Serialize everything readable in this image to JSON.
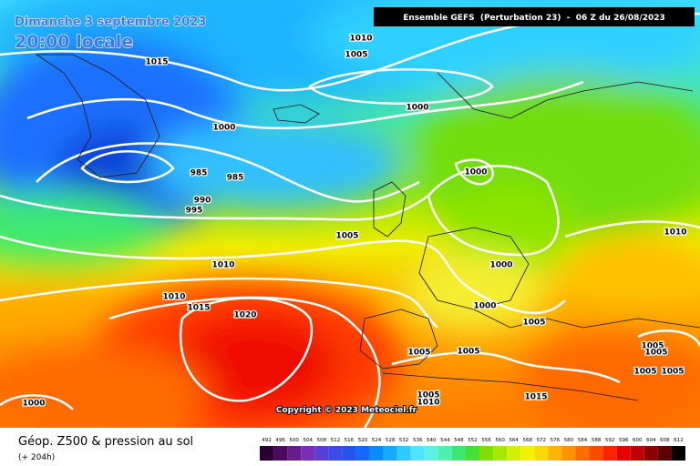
{
  "header": {
    "title": "Dimanche 3 septembre 2023",
    "subtitle": "20:00 locale",
    "run": "Ensemble GEFS  (Perturbation 23)  -  06 Z du 26/08/2023"
  },
  "isobar_labels": [
    1010,
    1005,
    1015,
    1000,
    1000,
    985,
    985,
    1000,
    990,
    995,
    1005,
    1010,
    1010,
    1000,
    1010,
    1015,
    1000,
    1020,
    1005,
    1005,
    1005,
    1005,
    1005,
    1005,
    1005,
    1005,
    1010,
    1015,
    1000
  ],
  "copyright": "Copyright © 2023 Meteociel.fr",
  "footer": {
    "title": "Géop. Z500 & pression au sol",
    "lead": "(+ 204h)"
  },
  "legend": {
    "levels": [
      492,
      496,
      500,
      504,
      508,
      512,
      516,
      520,
      524,
      528,
      532,
      536,
      540,
      544,
      548,
      552,
      556,
      560,
      564,
      568,
      572,
      576,
      580,
      584,
      588,
      592,
      596,
      600,
      604,
      608,
      612
    ],
    "colors": [
      "#2a0033",
      "#4b0a5e",
      "#6a1b8a",
      "#7b2fb8",
      "#5a3fd6",
      "#3b4ce8",
      "#2255f0",
      "#1468ff",
      "#0a8cff",
      "#14aaff",
      "#2ecbff",
      "#4fe3ff",
      "#5ff0e0",
      "#4ff0a8",
      "#3de870",
      "#45e030",
      "#7ce000",
      "#a8e800",
      "#d4f000",
      "#f5f000",
      "#ffd700",
      "#ffb400",
      "#ff9200",
      "#ff6e00",
      "#ff4a00",
      "#ff2200",
      "#e80000",
      "#c00000",
      "#8e0000",
      "#5a0000",
      "#000000"
    ]
  }
}
